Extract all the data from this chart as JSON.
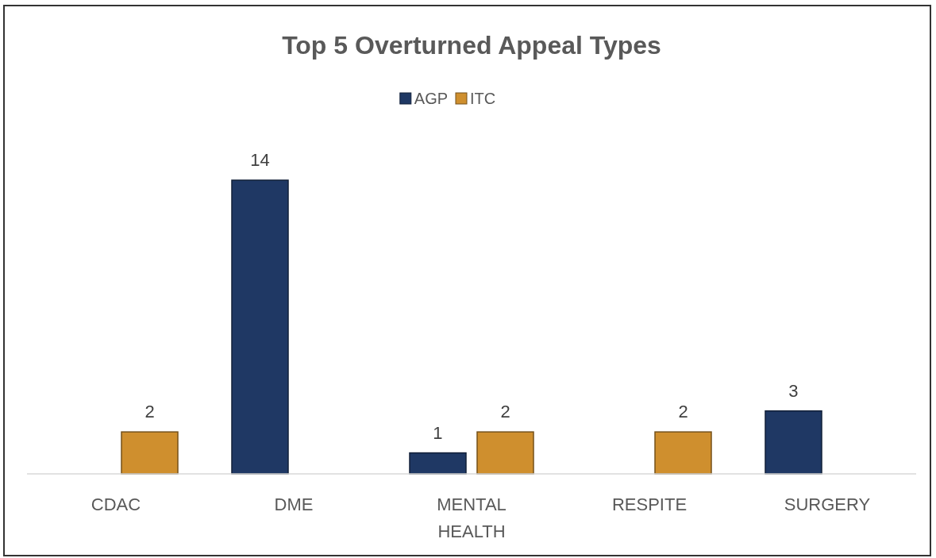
{
  "chart_data": {
    "type": "bar",
    "title": "Top 5 Overturned Appeal Types",
    "categories": [
      "CDAC",
      "DME",
      "MENTAL HEALTH",
      "RESPITE",
      "SURGERY"
    ],
    "series": [
      {
        "name": "AGP",
        "color": "#1f3864",
        "values": [
          null,
          14,
          1,
          null,
          3
        ]
      },
      {
        "name": "ITC",
        "color": "#cf8f2e",
        "values": [
          2,
          null,
          2,
          2,
          null
        ]
      }
    ],
    "data_labels": true,
    "legend": "top"
  }
}
